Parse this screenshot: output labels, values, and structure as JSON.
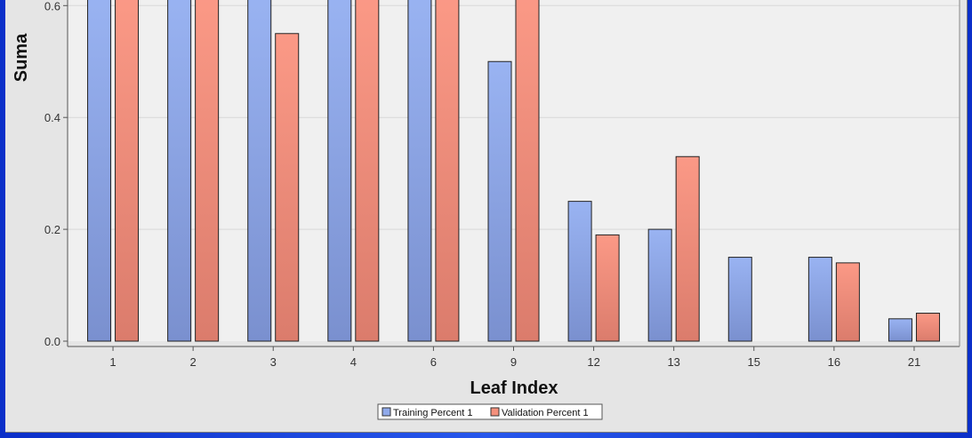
{
  "chart_data": {
    "type": "bar",
    "title": "",
    "xlabel": "Leaf Index",
    "ylabel": "Suma",
    "categories": [
      "1",
      "2",
      "3",
      "4",
      "6",
      "9",
      "12",
      "13",
      "15",
      "16",
      "21"
    ],
    "series": [
      {
        "name": "Training Percent 1",
        "color": "#8fa9ea",
        "values": [
          0.62,
          0.62,
          0.62,
          0.62,
          0.62,
          0.5,
          0.25,
          0.2,
          0.15,
          0.15,
          0.04
        ]
      },
      {
        "name": "Validation Percent 1",
        "color": "#f4907c",
        "values": [
          0.62,
          0.62,
          0.55,
          0.62,
          0.62,
          0.62,
          0.19,
          0.33,
          0.0,
          0.14,
          0.05
        ]
      }
    ],
    "yticks": [
      "0.0",
      "0.2",
      "0.4",
      "0.6"
    ],
    "ylim": [
      0,
      0.6
    ],
    "grid": true,
    "legend_position": "bottom-center"
  }
}
